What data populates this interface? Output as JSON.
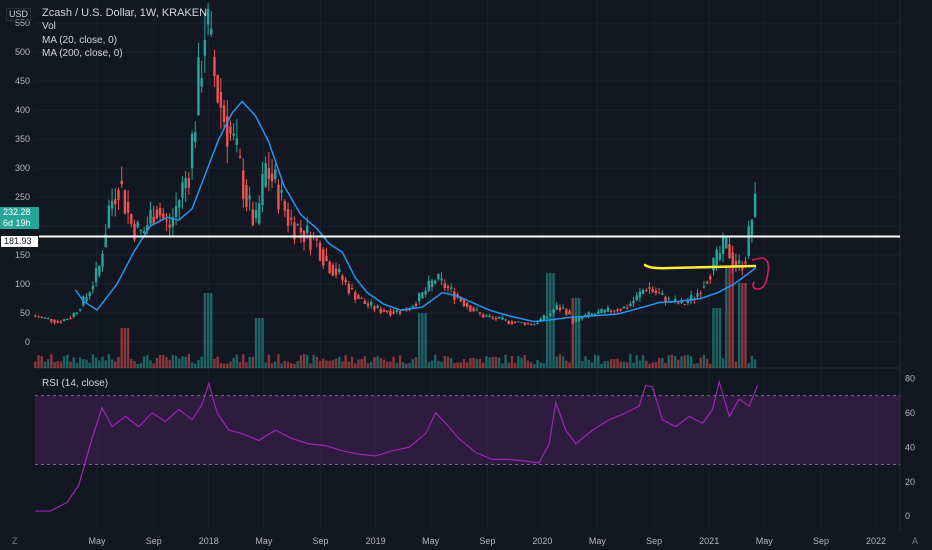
{
  "header": {
    "title": "Zcash / U.S. Dollar, 1W, KRAKEN",
    "vol_label": "Vol",
    "ma20_label": "MA (20, close, 0)",
    "ma200_label": "MA (200, close, 0)",
    "currency": "USD",
    "price_tag": "232.28",
    "countdown": "6d 19h",
    "level_tag": "181.93",
    "rsi_label": "RSI (14, close)",
    "corner_left": "Z",
    "corner_right": "A"
  },
  "colors": {
    "background": "#131722",
    "grid": "#1e222d",
    "up": "#26a69a",
    "down": "#ef5350",
    "ma": "#2196f3",
    "rsi_line": "#9c27b0",
    "rsi_band": "#3a1f4a",
    "level_line": "#ffffff",
    "highlight": "#ffeb3b",
    "annotation": "#d81b60"
  },
  "chart_data": [
    {
      "type": "candlestick",
      "title": "Zcash / U.S. Dollar, 1W, KRAKEN",
      "y_ticks": [
        0,
        50,
        100,
        150,
        200,
        250,
        300,
        350,
        400,
        450,
        500,
        550
      ],
      "ylim": [
        -45,
        590
      ],
      "x_ticks": [
        "May",
        "Sep",
        "2018",
        "May",
        "Sep",
        "2019",
        "May",
        "Sep",
        "2020",
        "May",
        "Sep",
        "2021",
        "May",
        "Sep",
        "2022"
      ],
      "horizontal_level": 181.93,
      "last_price": 232.28,
      "price_path": [
        [
          2016.96,
          45
        ],
        [
          2017.05,
          40
        ],
        [
          2017.12,
          34
        ],
        [
          2017.2,
          45
        ],
        [
          2017.28,
          75
        ],
        [
          2017.36,
          125
        ],
        [
          2017.42,
          230
        ],
        [
          2017.48,
          280
        ],
        [
          2017.55,
          205
        ],
        [
          2017.62,
          185
        ],
        [
          2017.7,
          235
        ],
        [
          2017.78,
          195
        ],
        [
          2017.85,
          255
        ],
        [
          2017.9,
          300
        ],
        [
          2017.95,
          420
        ],
        [
          2018.0,
          560
        ],
        [
          2018.04,
          480
        ],
        [
          2018.08,
          420
        ],
        [
          2018.12,
          380
        ],
        [
          2018.18,
          330
        ],
        [
          2018.25,
          240
        ],
        [
          2018.3,
          200
        ],
        [
          2018.36,
          300
        ],
        [
          2018.42,
          270
        ],
        [
          2018.5,
          210
        ],
        [
          2018.58,
          190
        ],
        [
          2018.66,
          175
        ],
        [
          2018.72,
          140
        ],
        [
          2018.8,
          115
        ],
        [
          2018.88,
          85
        ],
        [
          2018.96,
          65
        ],
        [
          2019.05,
          55
        ],
        [
          2019.12,
          52
        ],
        [
          2019.2,
          55
        ],
        [
          2019.28,
          75
        ],
        [
          2019.34,
          95
        ],
        [
          2019.38,
          110
        ],
        [
          2019.44,
          95
        ],
        [
          2019.5,
          80
        ],
        [
          2019.58,
          60
        ],
        [
          2019.66,
          45
        ],
        [
          2019.74,
          40
        ],
        [
          2019.82,
          35
        ],
        [
          2019.9,
          33
        ],
        [
          2019.96,
          30
        ],
        [
          2020.05,
          45
        ],
        [
          2020.1,
          60
        ],
        [
          2020.16,
          55
        ],
        [
          2020.2,
          35
        ],
        [
          2020.28,
          45
        ],
        [
          2020.36,
          50
        ],
        [
          2020.44,
          55
        ],
        [
          2020.52,
          60
        ],
        [
          2020.58,
          75
        ],
        [
          2020.64,
          95
        ],
        [
          2020.7,
          85
        ],
        [
          2020.78,
          70
        ],
        [
          2020.86,
          65
        ],
        [
          2020.94,
          80
        ],
        [
          2021.0,
          110
        ],
        [
          2021.04,
          130
        ],
        [
          2021.08,
          150
        ],
        [
          2021.12,
          170
        ],
        [
          2021.16,
          140
        ],
        [
          2021.2,
          130
        ],
        [
          2021.24,
          150
        ],
        [
          2021.27,
          210
        ],
        [
          2021.29,
          232
        ]
      ],
      "ma20_path": [
        [
          2017.2,
          90
        ],
        [
          2017.25,
          70
        ],
        [
          2017.33,
          55
        ],
        [
          2017.45,
          100
        ],
        [
          2017.55,
          155
        ],
        [
          2017.65,
          200
        ],
        [
          2017.75,
          215
        ],
        [
          2017.82,
          210
        ],
        [
          2017.9,
          230
        ],
        [
          2017.98,
          290
        ],
        [
          2018.06,
          350
        ],
        [
          2018.14,
          395
        ],
        [
          2018.2,
          415
        ],
        [
          2018.28,
          390
        ],
        [
          2018.36,
          345
        ],
        [
          2018.45,
          270
        ],
        [
          2018.55,
          220
        ],
        [
          2018.65,
          195
        ],
        [
          2018.72,
          170
        ],
        [
          2018.8,
          155
        ],
        [
          2018.88,
          110
        ],
        [
          2018.95,
          85
        ],
        [
          2019.05,
          65
        ],
        [
          2019.15,
          55
        ],
        [
          2019.28,
          60
        ],
        [
          2019.4,
          85
        ],
        [
          2019.48,
          80
        ],
        [
          2019.58,
          68
        ],
        [
          2019.68,
          55
        ],
        [
          2019.8,
          45
        ],
        [
          2019.95,
          35
        ],
        [
          2020.05,
          38
        ],
        [
          2020.15,
          42
        ],
        [
          2020.3,
          45
        ],
        [
          2020.45,
          48
        ],
        [
          2020.58,
          58
        ],
        [
          2020.7,
          68
        ],
        [
          2020.82,
          70
        ],
        [
          2020.95,
          75
        ],
        [
          2021.05,
          85
        ],
        [
          2021.15,
          100
        ],
        [
          2021.22,
          115
        ],
        [
          2021.28,
          128
        ]
      ],
      "volume_spikes": [
        [
          2017.5,
          40
        ],
        [
          2018.0,
          75
        ],
        [
          2018.3,
          50
        ],
        [
          2019.28,
          55
        ],
        [
          2020.05,
          95
        ],
        [
          2020.2,
          70
        ],
        [
          2021.05,
          60
        ],
        [
          2021.12,
          100
        ],
        [
          2021.2,
          85
        ]
      ]
    },
    {
      "type": "line",
      "title": "RSI (14, close)",
      "y_ticks": [
        0,
        20,
        40,
        60,
        80
      ],
      "ylim": [
        -8,
        82
      ],
      "band": [
        30,
        70
      ],
      "x": [
        2016.96,
        2017.05,
        2017.15,
        2017.22,
        2017.3,
        2017.36,
        2017.42,
        2017.5,
        2017.58,
        2017.66,
        2017.74,
        2017.82,
        2017.9,
        2017.96,
        2018.0,
        2018.05,
        2018.12,
        2018.2,
        2018.3,
        2018.4,
        2018.5,
        2018.6,
        2018.7,
        2018.8,
        2018.9,
        2019.0,
        2019.1,
        2019.2,
        2019.3,
        2019.36,
        2019.42,
        2019.5,
        2019.6,
        2019.7,
        2019.8,
        2019.9,
        2019.98,
        2020.04,
        2020.08,
        2020.14,
        2020.2,
        2020.3,
        2020.4,
        2020.5,
        2020.58,
        2020.62,
        2020.66,
        2020.72,
        2020.8,
        2020.88,
        2020.96,
        2021.02,
        2021.06,
        2021.12,
        2021.18,
        2021.24,
        2021.29
      ],
      "values": [
        3,
        3,
        8,
        18,
        45,
        63,
        52,
        58,
        52,
        60,
        55,
        62,
        56,
        65,
        77,
        60,
        50,
        48,
        44,
        50,
        45,
        42,
        41,
        38,
        36,
        35,
        38,
        40,
        48,
        60,
        54,
        45,
        37,
        33,
        33,
        32,
        31,
        42,
        66,
        50,
        42,
        50,
        56,
        60,
        64,
        76,
        75,
        56,
        52,
        58,
        54,
        62,
        78,
        58,
        68,
        64,
        76
      ]
    }
  ]
}
